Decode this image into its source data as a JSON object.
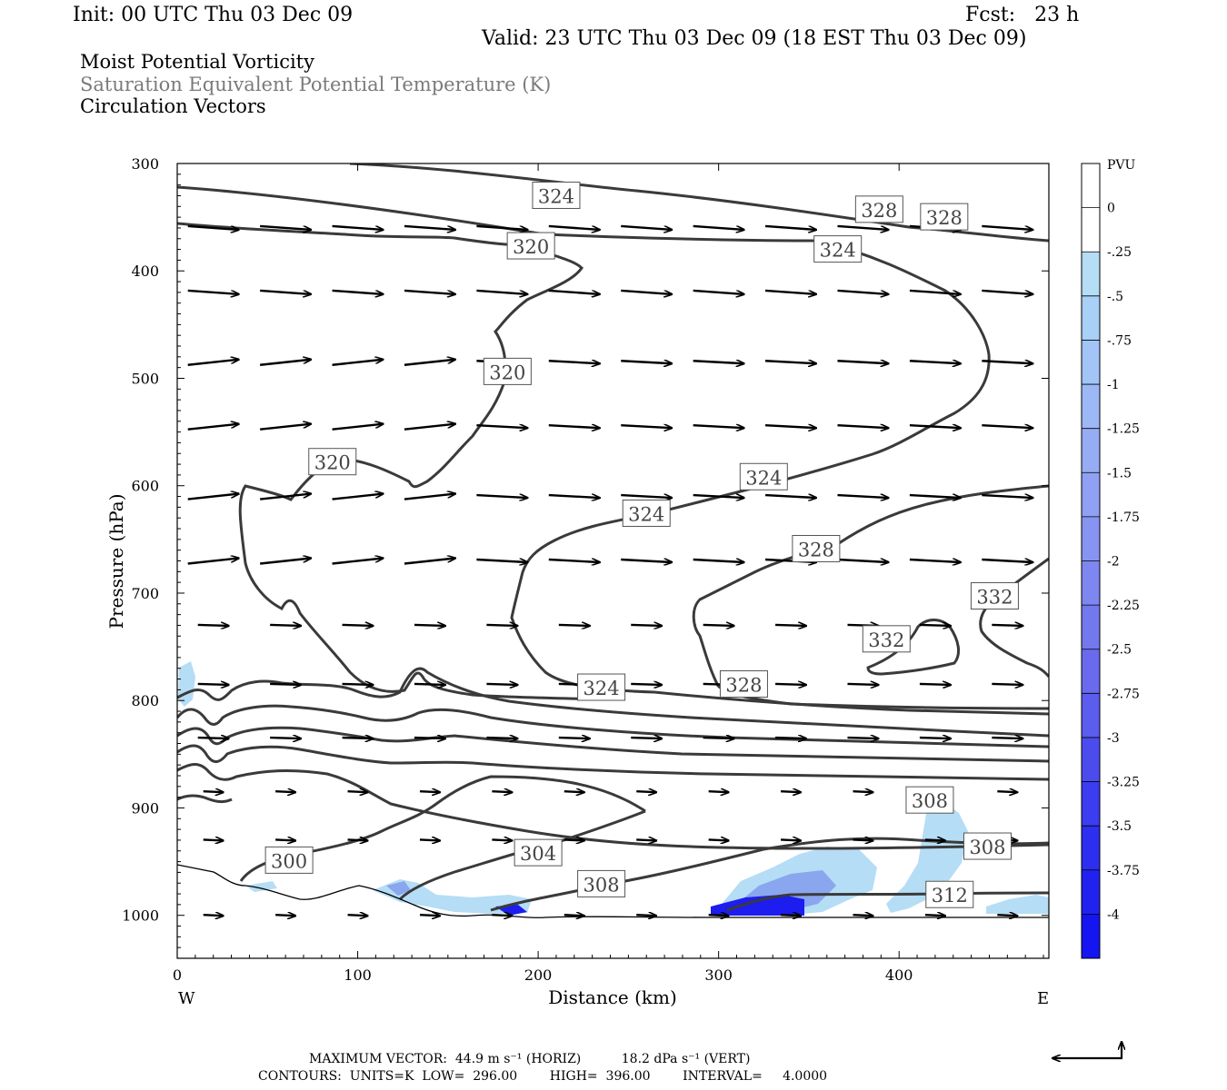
{
  "header": {
    "init": "Init: 00 UTC Thu 03 Dec 09",
    "fcst": "Fcst:   23 h",
    "valid": "Valid: 23 UTC Thu 03 Dec 09 (18 EST Thu 03 Dec 09)",
    "field1": "Moist Potential Vorticity",
    "field2": "Saturation Equivalent Potential Temperature (K)",
    "field3": "Circulation Vectors"
  },
  "footer": {
    "max_vector": "MAXIMUM VECTOR:  44.9 m s⁻¹ (HORIZ)          18.2 dPa s⁻¹ (VERT)",
    "contours": "CONTOURS:  UNITS=K  LOW=  296.00        HIGH=  396.00        INTERVAL=     4.0000"
  },
  "colors": {
    "contour": "#3a3a3a",
    "shade_light": "#b5ddf5",
    "shade_mid": "#8aa6ee",
    "shade_dark": "#1d1df0"
  },
  "chart_data": {
    "type": "heatmap",
    "title": "Moist Potential Vorticity / Saturation Equivalent Potential Temperature (K) / Circulation Vectors",
    "xlabel": "Distance (km)",
    "ylabel": "Pressure (hPa)",
    "xlim": [
      0,
      483
    ],
    "ylim": [
      1040,
      300
    ],
    "x_ticks": [
      0,
      100,
      200,
      300,
      400
    ],
    "y_ticks": [
      300,
      400,
      500,
      600,
      700,
      800,
      900,
      1000
    ],
    "x_end_labels": {
      "left": "W",
      "right": "E"
    },
    "colorbar": {
      "unit": "PVU",
      "labels": [
        "0",
        "-.25",
        "-.5",
        "-.75",
        "-1",
        "-1.25",
        "-1.5",
        "-1.75",
        "-2",
        "-2.25",
        "-2.5",
        "-2.75",
        "-3",
        "-3.25",
        "-3.5",
        "-3.75",
        "-4"
      ],
      "colors": [
        "#ffffff",
        "#ffffff",
        "#b5ddf5",
        "#a9d0f6",
        "#a2c4f6",
        "#9cb8f6",
        "#96acf4",
        "#90a0f2",
        "#8894f2",
        "#7e86f0",
        "#7478ee",
        "#6a6aee",
        "#5c5cee",
        "#4c4cee",
        "#3c3cf0",
        "#2e2ef0",
        "#2222f0",
        "#1515f2"
      ]
    },
    "contour_labels": [
      {
        "text": "324",
        "x": 210,
        "p": 330
      },
      {
        "text": "320",
        "x": 196,
        "p": 377
      },
      {
        "text": "328",
        "x": 389,
        "p": 343
      },
      {
        "text": "328",
        "x": 425,
        "p": 350
      },
      {
        "text": "324",
        "x": 366,
        "p": 380
      },
      {
        "text": "320",
        "x": 183,
        "p": 494
      },
      {
        "text": "320",
        "x": 86,
        "p": 578
      },
      {
        "text": "324",
        "x": 325,
        "p": 592
      },
      {
        "text": "324",
        "x": 260,
        "p": 626
      },
      {
        "text": "328",
        "x": 354,
        "p": 659
      },
      {
        "text": "332",
        "x": 453,
        "p": 703
      },
      {
        "text": "332",
        "x": 393,
        "p": 743
      },
      {
        "text": "324",
        "x": 235,
        "p": 788
      },
      {
        "text": "328",
        "x": 314,
        "p": 785
      },
      {
        "text": "308",
        "x": 417,
        "p": 893
      },
      {
        "text": "308",
        "x": 449,
        "p": 936
      },
      {
        "text": "300",
        "x": 62,
        "p": 949
      },
      {
        "text": "304",
        "x": 200,
        "p": 942
      },
      {
        "text": "308",
        "x": 235,
        "p": 971
      },
      {
        "text": "312",
        "x": 428,
        "p": 981
      }
    ],
    "vector_grid": {
      "x": [
        20,
        60,
        100,
        140,
        180,
        220,
        260,
        300,
        340,
        380,
        420,
        460
      ],
      "p": [
        360,
        420,
        485,
        545,
        610,
        670,
        730,
        785,
        835,
        885,
        930,
        1000
      ]
    }
  }
}
